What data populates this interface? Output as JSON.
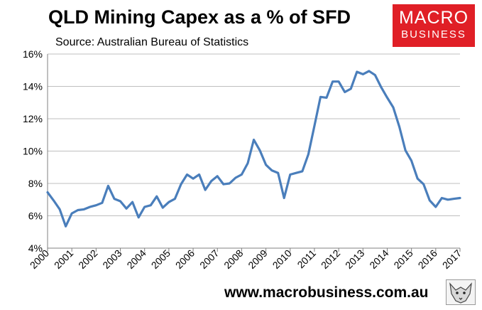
{
  "chart_data": {
    "type": "line",
    "title": "QLD Mining Capex as a % of SFD",
    "subtitle": "Source: Australian Bureau of Statistics",
    "xlabel": "",
    "ylabel": "",
    "xlim": [
      2000,
      2017
    ],
    "ylim": [
      4,
      16
    ],
    "y_ticks": [
      "4%",
      "6%",
      "8%",
      "10%",
      "12%",
      "14%",
      "16%"
    ],
    "x_ticks": [
      "2000",
      "2001",
      "2002",
      "2003",
      "2004",
      "2005",
      "2006",
      "2007",
      "2008",
      "2009",
      "2010",
      "2011",
      "2012",
      "2013",
      "2014",
      "2015",
      "2016",
      "2017"
    ],
    "grid": "horizontal",
    "legend": "none",
    "series": [
      {
        "color": "#4a7ebb",
        "x": [
          2000.0,
          2000.25,
          2000.5,
          2000.75,
          2001.0,
          2001.25,
          2001.5,
          2001.75,
          2002.0,
          2002.25,
          2002.5,
          2002.75,
          2003.0,
          2003.25,
          2003.5,
          2003.75,
          2004.0,
          2004.25,
          2004.5,
          2004.75,
          2005.0,
          2005.25,
          2005.5,
          2005.75,
          2006.0,
          2006.25,
          2006.5,
          2006.75,
          2007.0,
          2007.25,
          2007.5,
          2007.75,
          2008.0,
          2008.25,
          2008.5,
          2008.75,
          2009.0,
          2009.25,
          2009.5,
          2009.75,
          2010.0,
          2010.25,
          2010.5,
          2010.75,
          2011.0,
          2011.25,
          2011.5,
          2011.75,
          2012.0,
          2012.25,
          2012.5,
          2012.75,
          2013.0,
          2013.25,
          2013.5,
          2013.75,
          2014.0,
          2014.25,
          2014.5,
          2014.75,
          2015.0,
          2015.25,
          2015.5,
          2015.75,
          2016.0,
          2016.25,
          2016.5,
          2016.75,
          2017.0
        ],
        "values": [
          7.45,
          6.95,
          6.4,
          5.35,
          6.15,
          6.35,
          6.4,
          6.55,
          6.65,
          6.8,
          7.85,
          7.05,
          6.9,
          6.45,
          6.85,
          5.9,
          6.55,
          6.65,
          7.2,
          6.5,
          6.85,
          7.05,
          7.95,
          8.55,
          8.3,
          8.55,
          7.6,
          8.15,
          8.45,
          7.95,
          8.0,
          8.35,
          8.55,
          9.25,
          10.7,
          10.05,
          9.15,
          8.8,
          8.65,
          7.1,
          8.55,
          8.65,
          8.75,
          9.8,
          11.55,
          13.35,
          13.3,
          14.3,
          14.3,
          13.65,
          13.85,
          14.9,
          14.75,
          14.95,
          14.7,
          13.95,
          13.3,
          12.7,
          11.5,
          10.05,
          9.4,
          8.3,
          7.95,
          6.95,
          6.55,
          7.1,
          7.0,
          7.05,
          7.1
        ]
      }
    ]
  },
  "branding": {
    "logo_line1": "MACRO",
    "logo_line2": "BUSINESS",
    "website": "www.macrobusiness.com.au",
    "logo_color": "#e01f26"
  }
}
